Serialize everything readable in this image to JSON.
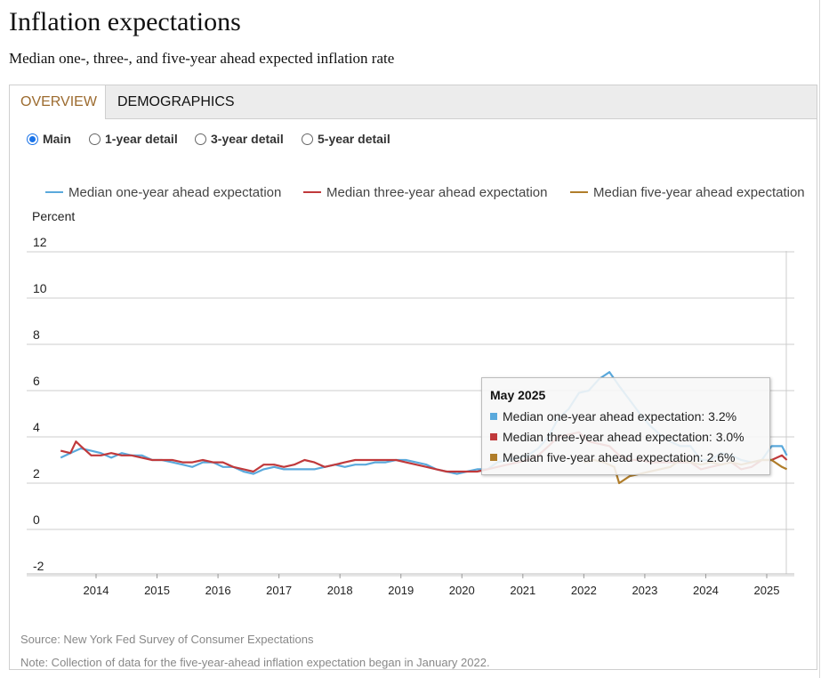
{
  "header": {
    "title": "Inflation expectations",
    "subtitle": "Median one-, three-, and five-year ahead expected inflation rate"
  },
  "tabs": [
    {
      "label": "OVERVIEW",
      "active": true
    },
    {
      "label": "DEMOGRAPHICS",
      "active": false
    }
  ],
  "radio_options": [
    {
      "label": "Main",
      "checked": true
    },
    {
      "label": "1-year detail",
      "checked": false
    },
    {
      "label": "3-year detail",
      "checked": false
    },
    {
      "label": "5-year detail",
      "checked": false
    }
  ],
  "colors": {
    "one_year": "#5aa9dc",
    "three_year": "#c0393b",
    "five_year": "#b07d2a",
    "grid": "#cccccc",
    "radio_accent": "#1a73e8",
    "tab_active": "#9c6b2f"
  },
  "tooltip": {
    "title": "May 2025",
    "rows": [
      {
        "label": "Median one-year ahead expectation: 3.2%",
        "color": "#5aa9dc"
      },
      {
        "label": "Median three-year ahead expectation: 3.0%",
        "color": "#c0393b"
      },
      {
        "label": "Median five-year ahead expectation: 2.6%",
        "color": "#b07d2a"
      }
    ]
  },
  "footer": {
    "source": "Source: New York Fed Survey of Consumer Expectations",
    "note": "Note: Collection of data for the five-year-ahead inflation expectation began in January 2022."
  },
  "chart_data": {
    "type": "line",
    "title": "",
    "ylabel": "Percent",
    "xlabel": "",
    "ylim": [
      -2,
      12
    ],
    "yticks": [
      "12",
      "10",
      "8",
      "6",
      "4",
      "2",
      "0",
      "-2"
    ],
    "ytick_values": [
      12,
      10,
      8,
      6,
      4,
      2,
      0,
      -2
    ],
    "xlim": [
      2013.42,
      2025.5
    ],
    "xticks": [
      "2014",
      "2015",
      "2016",
      "2017",
      "2018",
      "2019",
      "2020",
      "2021",
      "2022",
      "2023",
      "2024",
      "2025"
    ],
    "xtick_values": [
      2014,
      2015,
      2016,
      2017,
      2018,
      2019,
      2020,
      2021,
      2022,
      2023,
      2024,
      2025
    ],
    "grid": true,
    "legend_position": "top",
    "series": [
      {
        "name": "Median one-year ahead expectation",
        "key": "one_year",
        "points": [
          [
            2013.42,
            3.1
          ],
          [
            2013.58,
            3.3
          ],
          [
            2013.75,
            3.5
          ],
          [
            2013.92,
            3.4
          ],
          [
            2014.08,
            3.3
          ],
          [
            2014.25,
            3.1
          ],
          [
            2014.42,
            3.3
          ],
          [
            2014.58,
            3.2
          ],
          [
            2014.75,
            3.2
          ],
          [
            2014.92,
            3.0
          ],
          [
            2015.08,
            3.0
          ],
          [
            2015.25,
            2.9
          ],
          [
            2015.42,
            2.8
          ],
          [
            2015.58,
            2.7
          ],
          [
            2015.75,
            2.9
          ],
          [
            2015.92,
            2.9
          ],
          [
            2016.08,
            2.7
          ],
          [
            2016.25,
            2.7
          ],
          [
            2016.42,
            2.5
          ],
          [
            2016.58,
            2.4
          ],
          [
            2016.75,
            2.6
          ],
          [
            2016.92,
            2.7
          ],
          [
            2017.08,
            2.6
          ],
          [
            2017.25,
            2.6
          ],
          [
            2017.42,
            2.6
          ],
          [
            2017.58,
            2.6
          ],
          [
            2017.75,
            2.7
          ],
          [
            2017.92,
            2.8
          ],
          [
            2018.08,
            2.7
          ],
          [
            2018.25,
            2.8
          ],
          [
            2018.42,
            2.8
          ],
          [
            2018.58,
            2.9
          ],
          [
            2018.75,
            2.9
          ],
          [
            2018.92,
            3.0
          ],
          [
            2019.08,
            3.0
          ],
          [
            2019.25,
            2.9
          ],
          [
            2019.42,
            2.8
          ],
          [
            2019.58,
            2.6
          ],
          [
            2019.75,
            2.5
          ],
          [
            2019.92,
            2.4
          ],
          [
            2020.08,
            2.5
          ],
          [
            2020.25,
            2.6
          ],
          [
            2020.42,
            2.6
          ],
          [
            2020.58,
            2.9
          ],
          [
            2020.75,
            3.0
          ],
          [
            2020.92,
            3.1
          ],
          [
            2021.08,
            3.2
          ],
          [
            2021.25,
            3.5
          ],
          [
            2021.42,
            4.0
          ],
          [
            2021.58,
            4.8
          ],
          [
            2021.75,
            5.2
          ],
          [
            2021.92,
            5.9
          ],
          [
            2022.08,
            6.0
          ],
          [
            2022.25,
            6.5
          ],
          [
            2022.42,
            6.8
          ],
          [
            2022.58,
            6.2
          ],
          [
            2022.75,
            5.6
          ],
          [
            2022.92,
            5.0
          ],
          [
            2023.08,
            4.5
          ],
          [
            2023.25,
            4.1
          ],
          [
            2023.42,
            3.8
          ],
          [
            2023.58,
            3.6
          ],
          [
            2023.75,
            3.6
          ],
          [
            2023.92,
            3.0
          ],
          [
            2024.08,
            3.0
          ],
          [
            2024.25,
            3.3
          ],
          [
            2024.42,
            3.2
          ],
          [
            2024.58,
            3.0
          ],
          [
            2024.75,
            2.9
          ],
          [
            2024.92,
            3.0
          ],
          [
            2025.08,
            3.6
          ],
          [
            2025.25,
            3.6
          ],
          [
            2025.33,
            3.2
          ]
        ]
      },
      {
        "name": "Median three-year ahead expectation",
        "key": "three_year",
        "points": [
          [
            2013.42,
            3.4
          ],
          [
            2013.58,
            3.3
          ],
          [
            2013.67,
            3.8
          ],
          [
            2013.75,
            3.6
          ],
          [
            2013.92,
            3.2
          ],
          [
            2014.08,
            3.2
          ],
          [
            2014.25,
            3.3
          ],
          [
            2014.42,
            3.2
          ],
          [
            2014.58,
            3.2
          ],
          [
            2014.75,
            3.1
          ],
          [
            2014.92,
            3.0
          ],
          [
            2015.08,
            3.0
          ],
          [
            2015.25,
            3.0
          ],
          [
            2015.42,
            2.9
          ],
          [
            2015.58,
            2.9
          ],
          [
            2015.75,
            3.0
          ],
          [
            2015.92,
            2.9
          ],
          [
            2016.08,
            2.9
          ],
          [
            2016.25,
            2.7
          ],
          [
            2016.42,
            2.6
          ],
          [
            2016.58,
            2.5
          ],
          [
            2016.75,
            2.8
          ],
          [
            2016.92,
            2.8
          ],
          [
            2017.08,
            2.7
          ],
          [
            2017.25,
            2.8
          ],
          [
            2017.42,
            3.0
          ],
          [
            2017.58,
            2.9
          ],
          [
            2017.75,
            2.7
          ],
          [
            2017.92,
            2.8
          ],
          [
            2018.08,
            2.9
          ],
          [
            2018.25,
            3.0
          ],
          [
            2018.42,
            3.0
          ],
          [
            2018.58,
            3.0
          ],
          [
            2018.75,
            3.0
          ],
          [
            2018.92,
            3.0
          ],
          [
            2019.08,
            2.9
          ],
          [
            2019.25,
            2.8
          ],
          [
            2019.42,
            2.7
          ],
          [
            2019.58,
            2.6
          ],
          [
            2019.75,
            2.5
          ],
          [
            2019.92,
            2.5
          ],
          [
            2020.08,
            2.5
          ],
          [
            2020.25,
            2.5
          ],
          [
            2020.42,
            2.6
          ],
          [
            2020.58,
            2.7
          ],
          [
            2020.75,
            2.8
          ],
          [
            2020.92,
            2.9
          ],
          [
            2021.08,
            3.0
          ],
          [
            2021.25,
            3.2
          ],
          [
            2021.42,
            3.6
          ],
          [
            2021.58,
            4.0
          ],
          [
            2021.75,
            4.1
          ],
          [
            2021.92,
            4.2
          ],
          [
            2022.08,
            3.8
          ],
          [
            2022.25,
            3.7
          ],
          [
            2022.42,
            3.6
          ],
          [
            2022.58,
            3.2
          ],
          [
            2022.75,
            3.0
          ],
          [
            2022.92,
            3.0
          ],
          [
            2023.08,
            2.9
          ],
          [
            2023.25,
            2.9
          ],
          [
            2023.42,
            2.9
          ],
          [
            2023.58,
            2.9
          ],
          [
            2023.75,
            2.9
          ],
          [
            2023.92,
            2.6
          ],
          [
            2024.08,
            2.7
          ],
          [
            2024.25,
            2.8
          ],
          [
            2024.42,
            2.9
          ],
          [
            2024.58,
            2.6
          ],
          [
            2024.75,
            2.7
          ],
          [
            2024.92,
            3.0
          ],
          [
            2025.08,
            3.0
          ],
          [
            2025.25,
            3.2
          ],
          [
            2025.33,
            3.0
          ]
        ]
      },
      {
        "name": "Median five-year ahead expectation",
        "key": "five_year",
        "points": [
          [
            2022.0,
            2.9
          ],
          [
            2022.17,
            3.0
          ],
          [
            2022.33,
            2.9
          ],
          [
            2022.5,
            2.7
          ],
          [
            2022.58,
            2.0
          ],
          [
            2022.75,
            2.3
          ],
          [
            2022.92,
            2.4
          ],
          [
            2023.08,
            2.5
          ],
          [
            2023.25,
            2.6
          ],
          [
            2023.42,
            2.7
          ],
          [
            2023.58,
            3.0
          ],
          [
            2023.75,
            2.9
          ],
          [
            2023.92,
            2.8
          ],
          [
            2024.08,
            2.9
          ],
          [
            2024.25,
            2.8
          ],
          [
            2024.42,
            2.9
          ],
          [
            2024.58,
            2.8
          ],
          [
            2024.75,
            2.9
          ],
          [
            2024.92,
            3.0
          ],
          [
            2025.08,
            3.0
          ],
          [
            2025.25,
            2.7
          ],
          [
            2025.33,
            2.6
          ]
        ]
      }
    ]
  }
}
